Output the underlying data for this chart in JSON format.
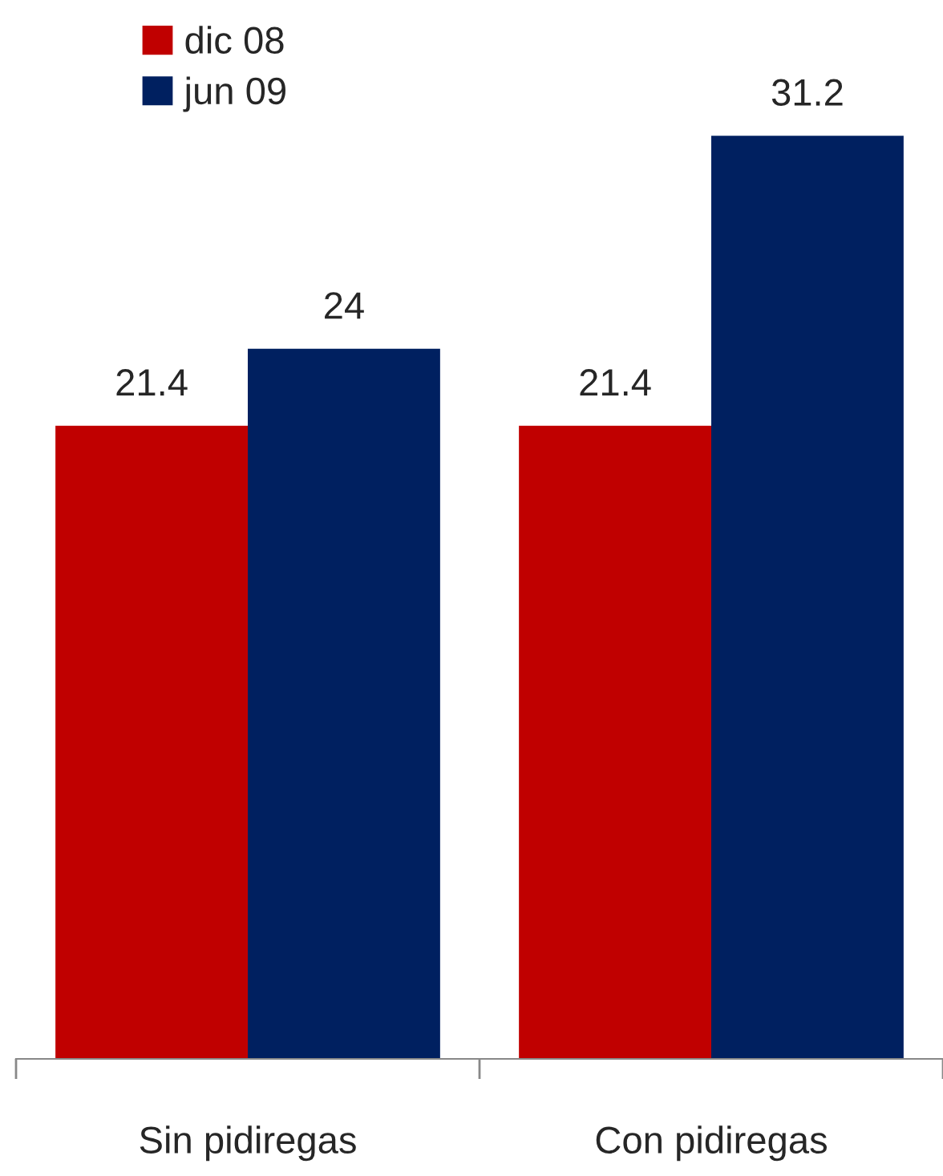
{
  "chart_data": {
    "type": "bar",
    "categories": [
      "Sin pidiregas",
      "Con pidiregas"
    ],
    "series": [
      {
        "name": "dic 08",
        "color": "#c00000",
        "values": [
          21.4,
          21.4
        ]
      },
      {
        "name": "jun 09",
        "color": "#002060",
        "values": [
          24,
          31.2
        ]
      }
    ],
    "data_labels": true,
    "legend": "top left",
    "grid": false
  }
}
